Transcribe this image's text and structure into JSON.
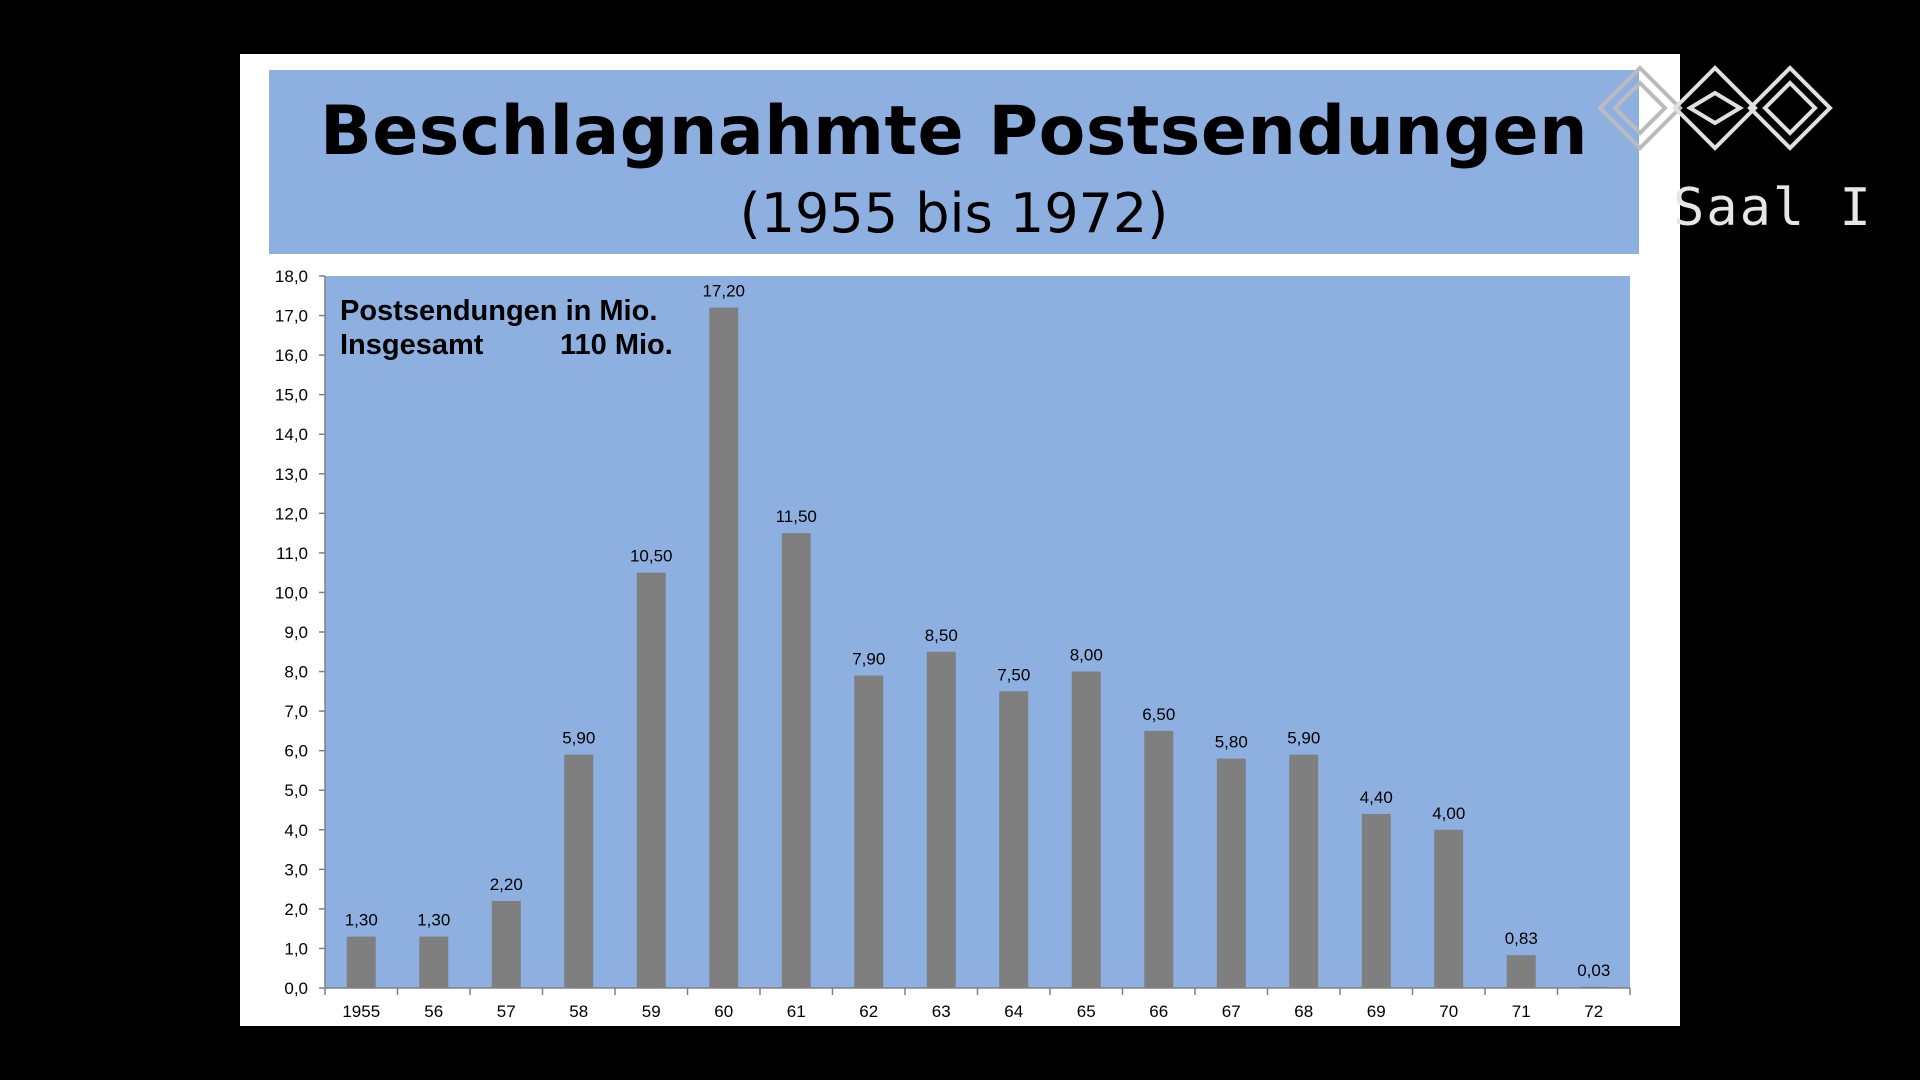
{
  "slide": {
    "title": "Beschlagnahmte Postsendungen",
    "subtitle": "(1955 bis 1972)"
  },
  "logo": {
    "text": "Saal I",
    "icon": "interlocking-diamond-logo-icon"
  },
  "chart_data": {
    "type": "bar",
    "annotation_line1": "Postsendungen in Mio.",
    "annotation_line2_label": "Insgesamt",
    "annotation_line2_value": "110 Mio.",
    "categories": [
      "1955",
      "56",
      "57",
      "58",
      "59",
      "60",
      "61",
      "62",
      "63",
      "64",
      "65",
      "66",
      "67",
      "68",
      "69",
      "70",
      "71",
      "72"
    ],
    "values": [
      1.3,
      1.3,
      2.2,
      5.9,
      10.5,
      17.2,
      11.5,
      7.9,
      8.5,
      7.5,
      8.0,
      6.5,
      5.8,
      5.9,
      4.4,
      4.0,
      0.83,
      0.03
    ],
    "value_labels": [
      "1,30",
      "1,30",
      "2,20",
      "5,90",
      "10,50",
      "17,20",
      "11,50",
      "7,90",
      "8,50",
      "7,50",
      "8,00",
      "6,50",
      "5,80",
      "5,90",
      "4,40",
      "4,00",
      "0,83",
      "0,03"
    ],
    "ylim": [
      0,
      18
    ],
    "yticks": [
      "0,0",
      "1,0",
      "2,0",
      "3,0",
      "4,0",
      "5,0",
      "6,0",
      "7,0",
      "8,0",
      "9,0",
      "10,0",
      "11,0",
      "12,0",
      "13,0",
      "14,0",
      "15,0",
      "16,0",
      "17,0",
      "18,0"
    ],
    "grid": false,
    "colors": {
      "plot_bg": "#8eb0e0",
      "bar": "#7f7f7f",
      "axis": "#808080"
    }
  }
}
